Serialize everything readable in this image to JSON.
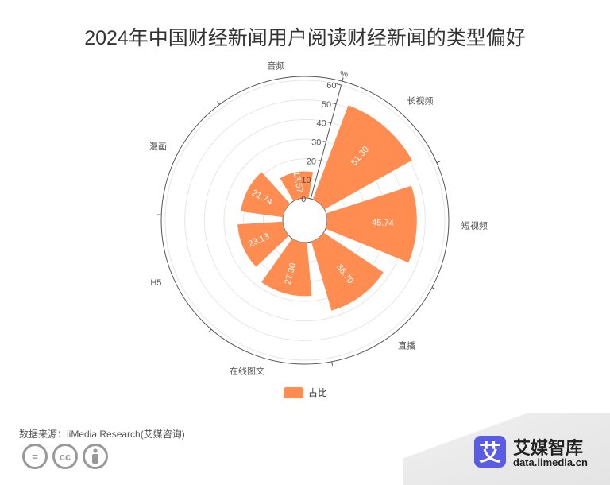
{
  "chart_data": {
    "type": "polar-bar",
    "title": "2024年中国财经新闻用户阅读财经新闻的类型偏好",
    "categories": [
      "长视频",
      "短视频",
      "直播",
      "在线图文",
      "H5",
      "漫画",
      "音频"
    ],
    "series": [
      {
        "name": "占比",
        "values": [
          51.3,
          45.74,
          36.7,
          27.3,
          23.13,
          21.74,
          13.57
        ]
      }
    ],
    "value_labels": [
      "51.30",
      "45.74",
      "36.70",
      "27.30",
      "23.13",
      "21.74",
      "13.57"
    ],
    "radial_axis": {
      "unit": "%",
      "min": 0,
      "max": 60,
      "ticks": [
        "0",
        "10",
        "20",
        "30",
        "40",
        "50",
        "60"
      ]
    },
    "legend_position": "bottom-center",
    "colors": {
      "bar": "#ff8c50",
      "axis": "#555555",
      "grid": "#e6e6e6",
      "label": "#555555"
    }
  },
  "source_note": "数据来源：iiMedia Research(艾媒咨询)",
  "license_icons": [
    "equals-icon",
    "cc-icon",
    "person-icon"
  ],
  "license_glyphs": {
    "equals": "=",
    "cc": "cc"
  },
  "brand": {
    "logo_char": "艾",
    "name": "艾媒智库",
    "url": "data.iimedia.cn"
  }
}
